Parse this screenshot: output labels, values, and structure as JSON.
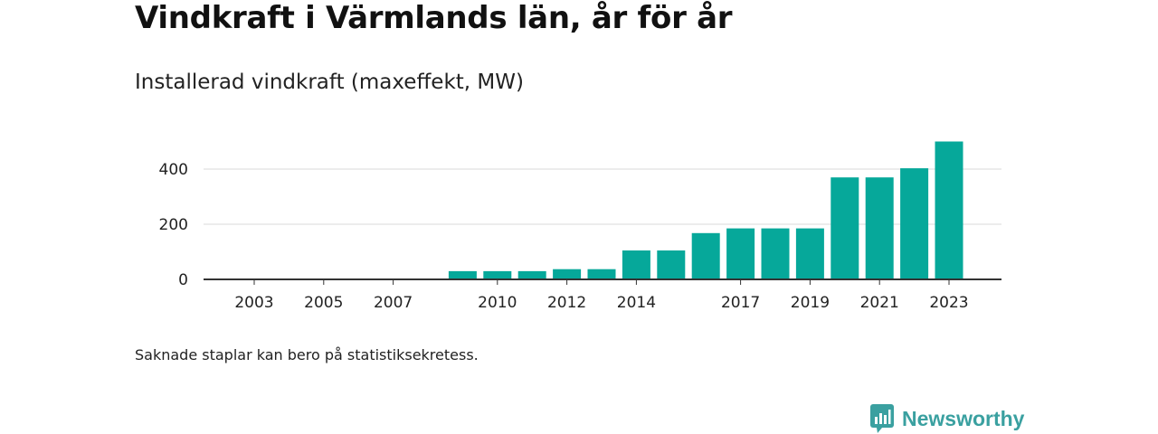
{
  "title": "Vindkraft i Värmlands län, år för år",
  "subtitle": "Installerad vindkraft (maxeffekt, MW)",
  "footnote": "Saknade staplar kan bero på statistiksekretess.",
  "brand": {
    "name": "Newsworthy",
    "icon": "newsworthy-logo-icon",
    "color": "#3aa0a0"
  },
  "chart_data": {
    "type": "bar",
    "categories": [
      "2003",
      "2004",
      "2005",
      "2006",
      "2007",
      "2008",
      "2009",
      "2010",
      "2011",
      "2012",
      "2013",
      "2014",
      "2015",
      "2016",
      "2017",
      "2018",
      "2019",
      "2020",
      "2021",
      "2022",
      "2023"
    ],
    "values": [
      null,
      null,
      null,
      null,
      null,
      null,
      30,
      30,
      30,
      37,
      37,
      105,
      105,
      168,
      185,
      185,
      185,
      370,
      370,
      403,
      500
    ],
    "x_tick_labels": [
      "2003",
      "2005",
      "2007",
      "2010",
      "2012",
      "2014",
      "2017",
      "2019",
      "2021",
      "2023"
    ],
    "y_ticks": [
      0,
      200,
      400
    ],
    "ylim": [
      0,
      500
    ],
    "grid": true,
    "bar_color": "#06a89a",
    "xlabel": "",
    "ylabel": ""
  }
}
